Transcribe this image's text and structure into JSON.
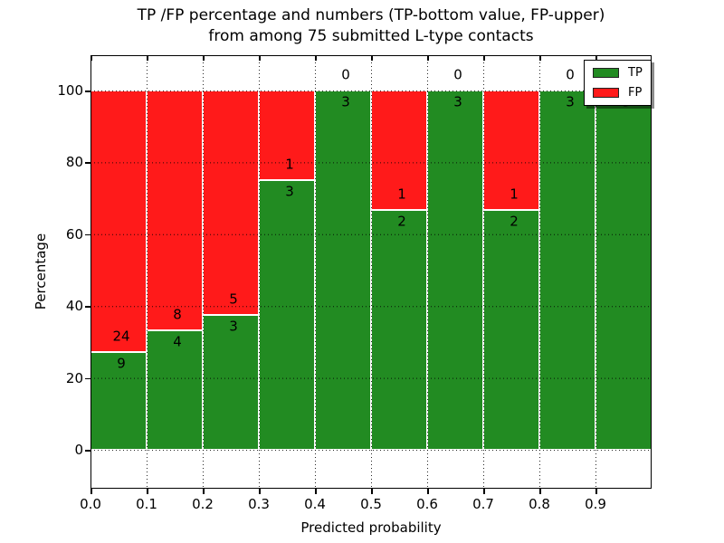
{
  "figure": {
    "title_line1": "TP /FP percentage and numbers (TP-bottom value, FP-upper)",
    "title_line2": "from among 75 submitted L-type contacts",
    "xlabel": "Predicted probability",
    "ylabel": "Percentage"
  },
  "legend": {
    "position": "upper right",
    "items": [
      {
        "label": "TP",
        "color": "#228B22"
      },
      {
        "label": "FP",
        "color": "#FF1A1A"
      }
    ]
  },
  "chart_data": {
    "type": "bar",
    "stacked": true,
    "title": "TP /FP percentage and numbers (TP-bottom value, FP-upper) from among 75 submitted L-type contacts",
    "xlabel": "Predicted probability",
    "ylabel": "Percentage",
    "total_submitted": 75,
    "x_tick_labels": [
      "0.0",
      "0.1",
      "0.2",
      "0.3",
      "0.4",
      "0.5",
      "0.6",
      "0.7",
      "0.8",
      "0.9"
    ],
    "y_tick_values": [
      0,
      20,
      40,
      60,
      80,
      100
    ],
    "xlim": [
      0.0,
      1.0
    ],
    "ylim": [
      -11,
      110
    ],
    "grid": "dotted",
    "legend_position": "upper right",
    "series": [
      {
        "name": "TP",
        "color": "#228B22"
      },
      {
        "name": "FP",
        "color": "#FF1A1A"
      }
    ],
    "bins": [
      {
        "x0": 0.0,
        "x1": 0.1,
        "tp": 9,
        "fp": 24,
        "tp_pct": 27.27,
        "fp_pct": 72.73
      },
      {
        "x0": 0.1,
        "x1": 0.2,
        "tp": 4,
        "fp": 8,
        "tp_pct": 33.33,
        "fp_pct": 66.67
      },
      {
        "x0": 0.2,
        "x1": 0.3,
        "tp": 3,
        "fp": 5,
        "tp_pct": 37.5,
        "fp_pct": 62.5
      },
      {
        "x0": 0.3,
        "x1": 0.4,
        "tp": 3,
        "fp": 1,
        "tp_pct": 75.0,
        "fp_pct": 25.0
      },
      {
        "x0": 0.4,
        "x1": 0.5,
        "tp": 3,
        "fp": 0,
        "tp_pct": 100.0,
        "fp_pct": 0.0
      },
      {
        "x0": 0.5,
        "x1": 0.6,
        "tp": 2,
        "fp": 1,
        "tp_pct": 66.67,
        "fp_pct": 33.33
      },
      {
        "x0": 0.6,
        "x1": 0.7,
        "tp": 3,
        "fp": 0,
        "tp_pct": 100.0,
        "fp_pct": 0.0
      },
      {
        "x0": 0.7,
        "x1": 0.8,
        "tp": 2,
        "fp": 1,
        "tp_pct": 66.67,
        "fp_pct": 33.33
      },
      {
        "x0": 0.8,
        "x1": 0.9,
        "tp": 3,
        "fp": 0,
        "tp_pct": 100.0,
        "fp_pct": 0.0
      },
      {
        "x0": 0.9,
        "x1": 1.0,
        "tp": 3,
        "fp": 0,
        "tp_pct": 100.0,
        "fp_pct": 0.0
      }
    ],
    "colors": {
      "tp": "#228B22",
      "fp": "#FF1A1A",
      "grid": "#000000",
      "background": "#FFFFFF",
      "text": "#000000"
    }
  }
}
